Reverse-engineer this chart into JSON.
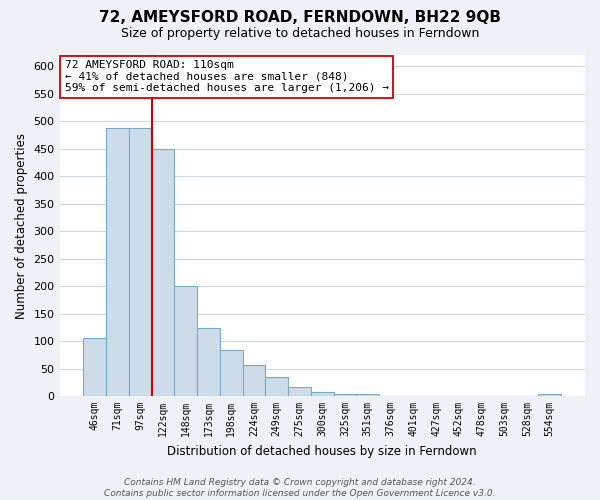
{
  "title": "72, AMEYSFORD ROAD, FERNDOWN, BH22 9QB",
  "subtitle": "Size of property relative to detached houses in Ferndown",
  "xlabel": "Distribution of detached houses by size in Ferndown",
  "ylabel": "Number of detached properties",
  "bin_labels": [
    "46sqm",
    "71sqm",
    "97sqm",
    "122sqm",
    "148sqm",
    "173sqm",
    "198sqm",
    "224sqm",
    "249sqm",
    "275sqm",
    "300sqm",
    "325sqm",
    "351sqm",
    "376sqm",
    "401sqm",
    "427sqm",
    "452sqm",
    "478sqm",
    "503sqm",
    "528sqm",
    "554sqm"
  ],
  "bar_values": [
    105,
    487,
    487,
    450,
    200,
    123,
    83,
    57,
    35,
    17,
    8,
    3,
    3,
    1,
    1,
    0,
    0,
    0,
    0,
    0,
    3
  ],
  "bar_color": "#ccdce8",
  "bar_edge_color": "#7aaac8",
  "vline_x_index": 2,
  "vline_color": "#cc0000",
  "annotation_line1": "72 AMEYSFORD ROAD: 110sqm",
  "annotation_line2": "← 41% of detached houses are smaller (848)",
  "annotation_line3": "59% of semi-detached houses are larger (1,206) →",
  "annotation_box_color": "#ffffff",
  "annotation_box_edge": "#cc0000",
  "ylim": [
    0,
    620
  ],
  "yticks": [
    0,
    50,
    100,
    150,
    200,
    250,
    300,
    350,
    400,
    450,
    500,
    550,
    600
  ],
  "footer_text": "Contains HM Land Registry data © Crown copyright and database right 2024.\nContains public sector information licensed under the Open Government Licence v3.0.",
  "background_color": "#eef2f6",
  "plot_background_color": "#ffffff",
  "grid_color": "#ccd8e4"
}
